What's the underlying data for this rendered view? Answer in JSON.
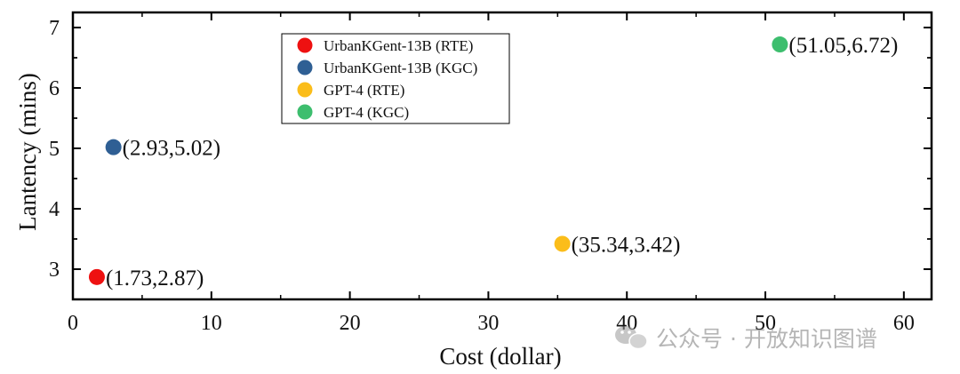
{
  "chart_data": {
    "type": "scatter",
    "xlabel": "Cost (dollar)",
    "ylabel": "Lantency (mins)",
    "xlim": [
      0,
      62
    ],
    "ylim": [
      2.5,
      7.25
    ],
    "xticks": [
      0,
      10,
      20,
      30,
      40,
      50,
      60
    ],
    "yticks": [
      3,
      4,
      5,
      6,
      7
    ],
    "grid": false,
    "legend_position": "top-center",
    "series": [
      {
        "name": "UrbanKGent-13B (RTE)",
        "color": "#ee1111",
        "x": 1.73,
        "y": 2.87,
        "label": "(1.73,2.87)"
      },
      {
        "name": "UrbanKGent-13B (KGC)",
        "color": "#2f5f94",
        "x": 2.93,
        "y": 5.02,
        "label": "(2.93,5.02)"
      },
      {
        "name": "GPT-4 (RTE)",
        "color": "#fbbd1a",
        "x": 35.34,
        "y": 3.42,
        "label": "(35.34,3.42)"
      },
      {
        "name": "GPT-4 (KGC)",
        "color": "#3dbe6e",
        "x": 51.05,
        "y": 6.72,
        "label": "(51.05,6.72)"
      }
    ]
  },
  "watermark": {
    "text": "公众号 · 开放知识图谱",
    "icon": "wechat-icon"
  }
}
